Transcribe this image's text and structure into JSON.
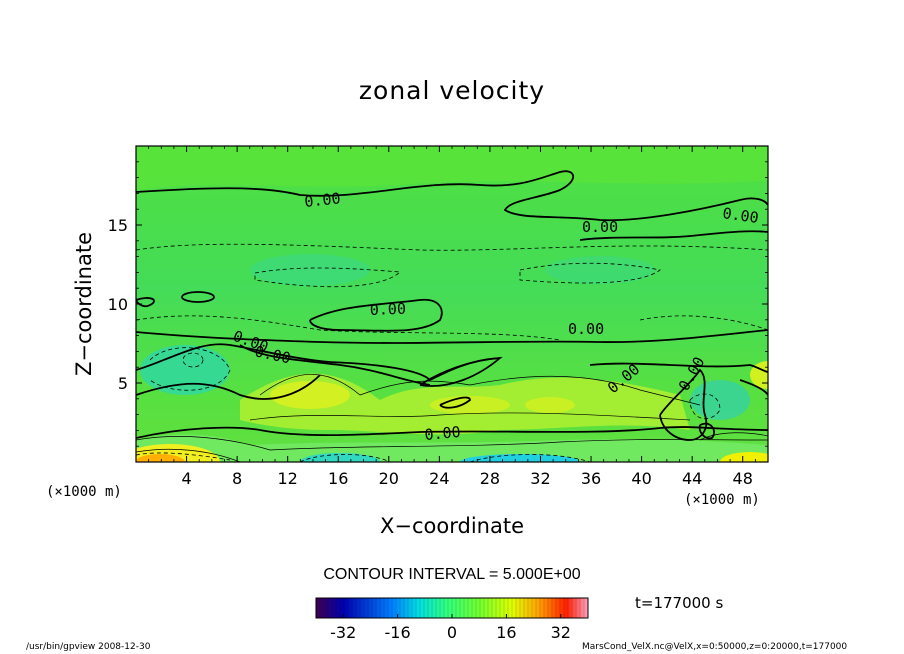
{
  "chart_data": {
    "type": "heatmap",
    "title": "zonal velocity",
    "xlabel": "X−coordinate",
    "ylabel": "Z−coordinate",
    "x_unit": "(×1000 m)",
    "y_unit": "(×1000 m)",
    "xlim": [
      0,
      50
    ],
    "ylim": [
      0,
      20
    ],
    "x_ticks": [
      4,
      8,
      12,
      16,
      20,
      24,
      28,
      32,
      36,
      40,
      44,
      48
    ],
    "y_ticks": [
      5,
      10,
      15
    ],
    "contour_labels": [
      "0.00",
      "0.00",
      "0.00",
      "0.00",
      "0.00",
      "0.00",
      "0.00",
      "0.00",
      "0.00",
      "0.00"
    ],
    "contour_interval_text": "CONTOUR INTERVAL = 5.000E+00",
    "colorbar": {
      "range": [
        -40,
        40
      ],
      "ticks": [
        -32,
        -16,
        0,
        16,
        32
      ],
      "colors": [
        "#400050",
        "#0000c0",
        "#00a0ff",
        "#00ffc0",
        "#40ff60",
        "#b0ff40",
        "#ffff00",
        "#ff8000",
        "#ff0000",
        "#ff80c0"
      ]
    },
    "time_text": "t=177000  s"
  },
  "footer": {
    "left": "/usr/bin/gpview    2008-12-30",
    "right": "MarsCond_VelX.nc@VelX,x=0:50000,z=0:20000,t=177000"
  }
}
